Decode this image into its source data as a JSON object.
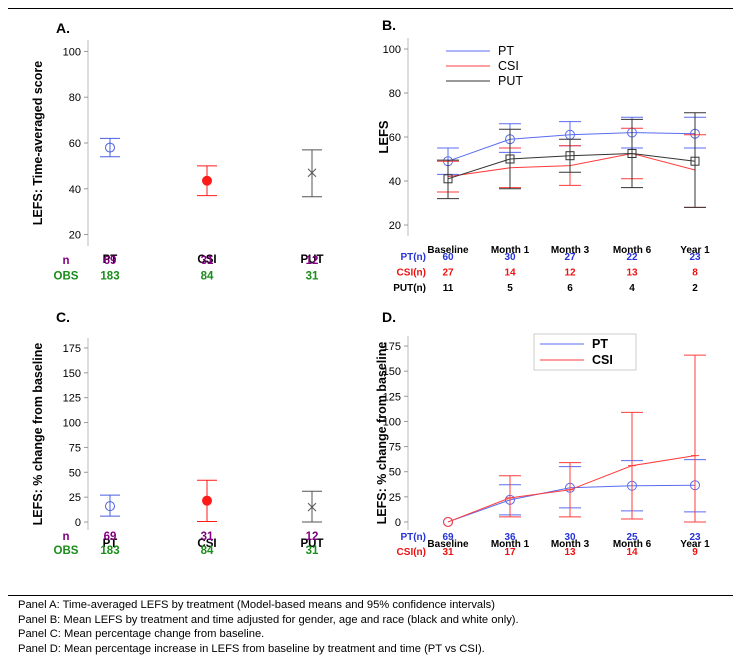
{
  "chart_data": [
    {
      "panel": "A.",
      "type": "scatter",
      "ylabel": "LEFS: Time-averaged score",
      "ylim": [
        15,
        105
      ],
      "yticks": [
        20,
        40,
        60,
        80,
        100
      ],
      "categories": [
        "PT",
        "CSI",
        "PUT"
      ],
      "points": [
        {
          "category": "PT",
          "mean": 58,
          "lower": 54,
          "upper": 62,
          "marker": "circle",
          "color": "#4a5fe0"
        },
        {
          "category": "CSI",
          "mean": 43.5,
          "lower": 37,
          "upper": 50,
          "marker": "filled-circle",
          "color": "#ff1a1a"
        },
        {
          "category": "PUT",
          "mean": 47,
          "lower": 36.5,
          "upper": 57,
          "marker": "x",
          "color": "#555555"
        }
      ],
      "table": [
        {
          "label": "n",
          "color": "#800080",
          "values": [
            "69",
            "31",
            "12"
          ]
        },
        {
          "label": "OBS",
          "color": "#1a8c1a",
          "values": [
            "183",
            "84",
            "31"
          ]
        }
      ]
    },
    {
      "panel": "B.",
      "type": "line",
      "ylabel": "LEFS",
      "ylim": [
        15,
        105
      ],
      "yticks": [
        20,
        40,
        60,
        80,
        100
      ],
      "categories": [
        "Baseline",
        "Month 1",
        "Month 3",
        "Month 6",
        "Year 1"
      ],
      "legend": "top-left",
      "series": [
        {
          "name": "PT",
          "color": "#5a6cf0",
          "marker": "circle",
          "values": [
            49,
            59,
            61,
            62,
            61.5
          ],
          "lower": [
            43,
            53,
            56,
            55,
            55
          ],
          "upper": [
            55,
            66,
            67,
            69,
            69
          ]
        },
        {
          "name": "CSI",
          "color": "#ff3c3c",
          "marker": "none",
          "values": [
            42,
            46,
            47,
            52.5,
            45
          ],
          "lower": [
            35,
            37,
            38,
            41,
            28
          ],
          "upper": [
            49,
            55,
            56,
            64,
            61
          ]
        },
        {
          "name": "PUT",
          "color": "#333333",
          "marker": "square",
          "values": [
            41,
            50,
            51.5,
            52.5,
            49
          ],
          "lower": [
            32,
            36.5,
            44,
            37,
            28
          ],
          "upper": [
            49.5,
            63.5,
            59,
            68,
            71
          ]
        }
      ],
      "table": [
        {
          "label": "PT(n)",
          "color": "#2633d9",
          "values": [
            "60",
            "30",
            "27",
            "22",
            "23"
          ]
        },
        {
          "label": "CSI(n)",
          "color": "#ee1111",
          "values": [
            "27",
            "14",
            "12",
            "13",
            "8"
          ]
        },
        {
          "label": "PUT(n)",
          "color": "#000000",
          "values": [
            "11",
            "5",
            "6",
            "4",
            "2"
          ]
        }
      ]
    },
    {
      "panel": "C.",
      "type": "scatter",
      "ylabel": "LEFS: % change from baseline",
      "ylim": [
        -8,
        185
      ],
      "yticks": [
        0,
        25,
        50,
        75,
        100,
        125,
        150,
        175
      ],
      "categories": [
        "PT",
        "CSI",
        "PUT"
      ],
      "points": [
        {
          "category": "PT",
          "mean": 16,
          "lower": 6,
          "upper": 27,
          "marker": "circle",
          "color": "#4a5fe0"
        },
        {
          "category": "CSI",
          "mean": 21.5,
          "lower": 0.5,
          "upper": 42,
          "marker": "filled-circle",
          "color": "#ff1a1a"
        },
        {
          "category": "PUT",
          "mean": 15,
          "lower": 0,
          "upper": 31,
          "marker": "x",
          "color": "#555555"
        }
      ],
      "table": [
        {
          "label": "n",
          "color": "#800080",
          "values": [
            "69",
            "31",
            "12"
          ]
        },
        {
          "label": "OBS",
          "color": "#1a8c1a",
          "values": [
            "183",
            "84",
            "31"
          ]
        }
      ]
    },
    {
      "panel": "D.",
      "type": "line",
      "ylabel": "LEFS: % change from baseline",
      "ylim": [
        -8,
        185
      ],
      "yticks": [
        0,
        25,
        50,
        75,
        100,
        125,
        150,
        175
      ],
      "categories": [
        "Baseline",
        "Month 1",
        "Month 3",
        "Month 6",
        "Year 1"
      ],
      "legend": "top-center",
      "series": [
        {
          "name": "PT",
          "color": "#5a6cf0",
          "marker": "circle",
          "values": [
            0,
            22,
            34,
            36,
            36.5
          ],
          "lower": [
            null,
            7,
            14,
            11,
            10
          ],
          "upper": [
            null,
            37,
            55,
            61,
            62
          ]
        },
        {
          "name": "CSI",
          "color": "#ff3c3c",
          "marker": "plus",
          "values": [
            0,
            24,
            32,
            56,
            66
          ],
          "lower": [
            null,
            5,
            5,
            3,
            0
          ],
          "upper": [
            null,
            46,
            59,
            109,
            166
          ]
        }
      ],
      "table": [
        {
          "label": "PT(n)",
          "color": "#2633d9",
          "values": [
            "69",
            "36",
            "30",
            "25",
            "23"
          ]
        },
        {
          "label": "CSI(n)",
          "color": "#ee1111",
          "values": [
            "31",
            "17",
            "13",
            "14",
            "9"
          ]
        }
      ]
    }
  ],
  "caption": [
    "Panel A: Time-averaged LEFS by treatment (Model-based means and 95% confidence intervals)",
    "Panel B: Mean LEFS by treatment and time adjusted for gender, age and race (black and white only).",
    "Panel C: Mean percentage change from baseline.",
    "Panel D: Mean percentage increase in LEFS from baseline by treatment and time (PT vs CSI)."
  ]
}
